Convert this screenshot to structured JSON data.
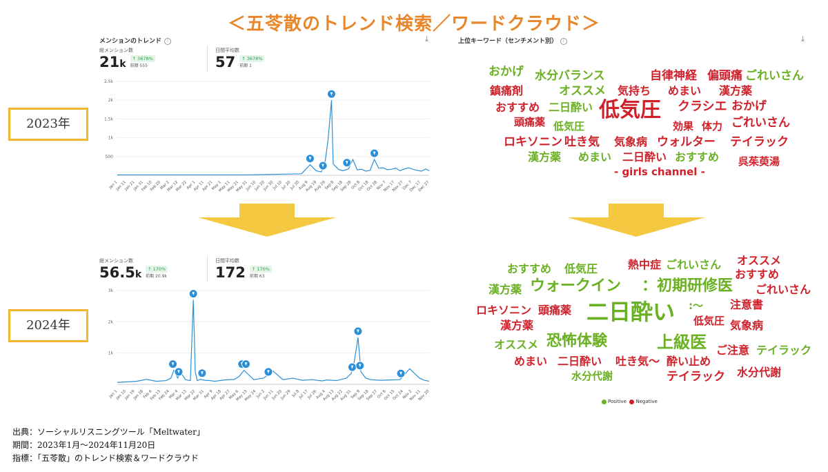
{
  "title": "＜五苓散のトレンド検索／ワードクラウド＞",
  "colors": {
    "accent": "#e8862a",
    "line": "#2a8fd6",
    "positive": "#6ab023",
    "negative": "#d0202a",
    "arrow": "#f5c842"
  },
  "trend_panel": {
    "title": "メンションのトレンド",
    "info_icon": "info-icon",
    "download_icon": "download-icon"
  },
  "wordcloud_panel": {
    "title": "上位キーワード（センチメント別）",
    "info_icon": "info-icon",
    "download_icon": "download-icon"
  },
  "stats2023": {
    "total_label": "総メンション数",
    "total_value": "21",
    "total_unit": "k",
    "total_change": "↑ 3678%",
    "total_prev": "前期 555",
    "avg_label": "日間平均数",
    "avg_value": "57",
    "avg_change": "↑ 3678%",
    "avg_prev": "前期 1"
  },
  "stats2024": {
    "total_label": "総メンション数",
    "total_value": "56.5",
    "total_unit": "k",
    "total_change": "↑ 170%",
    "total_prev": "前期 20.9k",
    "avg_label": "日間平均数",
    "avg_value": "172",
    "avg_change": "↑ 170%",
    "avg_prev": "前期 63"
  },
  "year_labels": {
    "y2023": "2023年",
    "y2024": "2024年"
  },
  "chart_data": [
    {
      "type": "line",
      "ylim": [
        0,
        2500
      ],
      "yticks": [
        "2.5k",
        "2k",
        "1.5k",
        "1k",
        "500"
      ],
      "ytick_values": [
        2500,
        2000,
        1500,
        1000,
        500
      ],
      "xticks": [
        "Jan 1",
        "Jan 11",
        "Jan 21",
        "Jan 31",
        "Feb 10",
        "Feb 20",
        "Mar 2",
        "Mar 12",
        "Mar 22",
        "Apr 1",
        "Apr 11",
        "Apr 21",
        "May 1",
        "May 11",
        "May 21",
        "May 31",
        "Jun 10",
        "Jun 20",
        "Jun 30",
        "Jul 10",
        "Jul 20",
        "Jul 30",
        "Aug 9",
        "Aug 19",
        "Aug 29",
        "Sep 8",
        "Sep 18",
        "Sep 28",
        "Oct 8",
        "Oct 18",
        "Oct 28",
        "Nov 7",
        "Nov 17",
        "Nov 27",
        "Dec 7",
        "Dec 17",
        "Dec 27"
      ],
      "x": [
        0,
        150,
        215,
        225,
        232,
        238,
        242,
        246,
        250,
        252,
        258,
        263,
        270,
        275,
        280,
        285,
        290,
        295,
        300,
        305,
        310,
        315,
        320,
        325,
        330,
        335,
        340,
        345,
        350,
        355,
        360,
        364
      ],
      "values": [
        10,
        10,
        40,
        280,
        120,
        90,
        260,
        950,
        2000,
        300,
        160,
        120,
        170,
        420,
        140,
        160,
        110,
        130,
        420,
        190,
        200,
        150,
        160,
        190,
        120,
        170,
        200,
        160,
        130,
        110,
        170,
        120
      ],
      "markers": [
        225,
        240,
        250,
        268,
        300
      ]
    },
    {
      "type": "line",
      "ylim": [
        0,
        3000
      ],
      "yticks": [
        "3k",
        "2k",
        "1k"
      ],
      "ytick_values": [
        3000,
        2000,
        1000
      ],
      "xticks": [
        "Jan 1",
        "Jan 10",
        "Jan 19",
        "Jan 28",
        "Feb 6",
        "Feb 15",
        "Feb 24",
        "Mar 4",
        "Mar 13",
        "Mar 22",
        "Mar 31",
        "Apr 9",
        "Apr 18",
        "Apr 27",
        "May 6",
        "May 15",
        "May 24",
        "Jun 2",
        "Jun 11",
        "Jun 20",
        "Jun 29",
        "Jul 8",
        "Jul 17",
        "Jul 26",
        "Aug 4",
        "Aug 13",
        "Aug 22",
        "Aug 31",
        "Sep 9",
        "Sep 18",
        "Sep 27",
        "Oct 6",
        "Oct 15",
        "Oct 24",
        "Nov 2",
        "Nov 11",
        "Nov 20"
      ],
      "x": [
        0,
        10,
        20,
        30,
        40,
        50,
        55,
        58,
        62,
        65,
        70,
        75,
        78,
        80,
        82,
        85,
        90,
        95,
        100,
        110,
        120,
        125,
        130,
        135,
        140,
        150,
        160,
        170,
        180,
        190,
        200,
        210,
        215,
        225,
        235,
        240,
        243,
        247,
        250,
        255,
        260,
        270,
        280,
        290,
        300,
        310,
        315,
        320
      ],
      "values": [
        60,
        80,
        100,
        160,
        100,
        120,
        200,
        450,
        200,
        380,
        150,
        120,
        2700,
        400,
        120,
        160,
        130,
        120,
        100,
        140,
        160,
        250,
        450,
        300,
        150,
        200,
        420,
        150,
        200,
        130,
        150,
        110,
        140,
        120,
        200,
        350,
        700,
        1500,
        400,
        200,
        150,
        130,
        140,
        150,
        500,
        200,
        130,
        100
      ],
      "markers": [
        57,
        63,
        78,
        87,
        128,
        132,
        155,
        241,
        247,
        249,
        291
      ]
    }
  ],
  "wordcloud2023": [
    {
      "text": "おかげ",
      "s": "pos"
    },
    {
      "text": "水分バランス",
      "s": "pos"
    },
    {
      "text": "自律神経",
      "s": "neg"
    },
    {
      "text": "偏頭痛",
      "s": "neg"
    },
    {
      "text": "ごれいさん",
      "s": "pos"
    },
    {
      "text": "鎮痛剤",
      "s": "neg"
    },
    {
      "text": "オススメ",
      "s": "pos"
    },
    {
      "text": "気持ち",
      "s": "neg"
    },
    {
      "text": "めまい",
      "s": "neg"
    },
    {
      "text": "漢方薬",
      "s": "neg"
    },
    {
      "text": "おすすめ",
      "s": "neg"
    },
    {
      "text": "二日酔い",
      "s": "pos"
    },
    {
      "text": "低気圧",
      "s": "neg"
    },
    {
      "text": "クラシエ",
      "s": "neg"
    },
    {
      "text": "おかげ",
      "s": "neg"
    },
    {
      "text": "頭痛薬",
      "s": "neg"
    },
    {
      "text": "低気圧",
      "s": "pos"
    },
    {
      "text": "効果",
      "s": "neg"
    },
    {
      "text": "体力",
      "s": "neg"
    },
    {
      "text": "ごれいさん",
      "s": "neg"
    },
    {
      "text": "ロキソニン",
      "s": "neg"
    },
    {
      "text": "吐き気",
      "s": "neg"
    },
    {
      "text": "気象病",
      "s": "neg"
    },
    {
      "text": "ウォルター",
      "s": "neg"
    },
    {
      "text": "テイラック",
      "s": "neg"
    },
    {
      "text": "漢方薬",
      "s": "pos"
    },
    {
      "text": "めまい",
      "s": "pos"
    },
    {
      "text": "二日酔い",
      "s": "neg"
    },
    {
      "text": "おすすめ",
      "s": "pos"
    },
    {
      "text": "呉茱萸湯",
      "s": "neg"
    },
    {
      "text": "- girls channel -",
      "s": "neg"
    }
  ],
  "wordcloud2024": [
    {
      "text": "おすすめ",
      "s": "pos"
    },
    {
      "text": "低気圧",
      "s": "pos"
    },
    {
      "text": "熱中症",
      "s": "neg"
    },
    {
      "text": "ごれいさん",
      "s": "pos"
    },
    {
      "text": "オススメ",
      "s": "neg"
    },
    {
      "text": "おすすめ",
      "s": "neg"
    },
    {
      "text": "漢方薬",
      "s": "pos"
    },
    {
      "text": "ウォークイン",
      "s": "pos"
    },
    {
      "text": "：初期研修医",
      "s": "pos"
    },
    {
      "text": "ごれいさん",
      "s": "neg"
    },
    {
      "text": "ロキソニン",
      "s": "neg"
    },
    {
      "text": "頭痛薬",
      "s": "neg"
    },
    {
      "text": "二日酔い",
      "s": "pos"
    },
    {
      "text": ":～",
      "s": "pos"
    },
    {
      "text": "注意書",
      "s": "neg"
    },
    {
      "text": "漢方薬",
      "s": "neg"
    },
    {
      "text": "低気圧",
      "s": "neg"
    },
    {
      "text": "気象病",
      "s": "neg"
    },
    {
      "text": "オススメ",
      "s": "pos"
    },
    {
      "text": "恐怖体験",
      "s": "pos"
    },
    {
      "text": "上級医",
      "s": "pos"
    },
    {
      "text": "ご注意",
      "s": "neg"
    },
    {
      "text": "テイラック",
      "s": "pos"
    },
    {
      "text": "めまい",
      "s": "neg"
    },
    {
      "text": "二日酔い",
      "s": "neg"
    },
    {
      "text": "吐き気～",
      "s": "neg"
    },
    {
      "text": "酔い止め",
      "s": "neg"
    },
    {
      "text": "水分代謝",
      "s": "pos"
    },
    {
      "text": "テイラック",
      "s": "neg"
    },
    {
      "text": "水分代謝",
      "s": "neg"
    }
  ],
  "legend": {
    "positive": "Positive",
    "negative": "Negative"
  },
  "footer": {
    "source": "出典：ソーシャルリスニングツール「Meltwater」",
    "period": "期間：2023年1月～2024年11月20日",
    "metric": "指標：「五苓散」のトレンド検索＆ワードクラウド"
  }
}
